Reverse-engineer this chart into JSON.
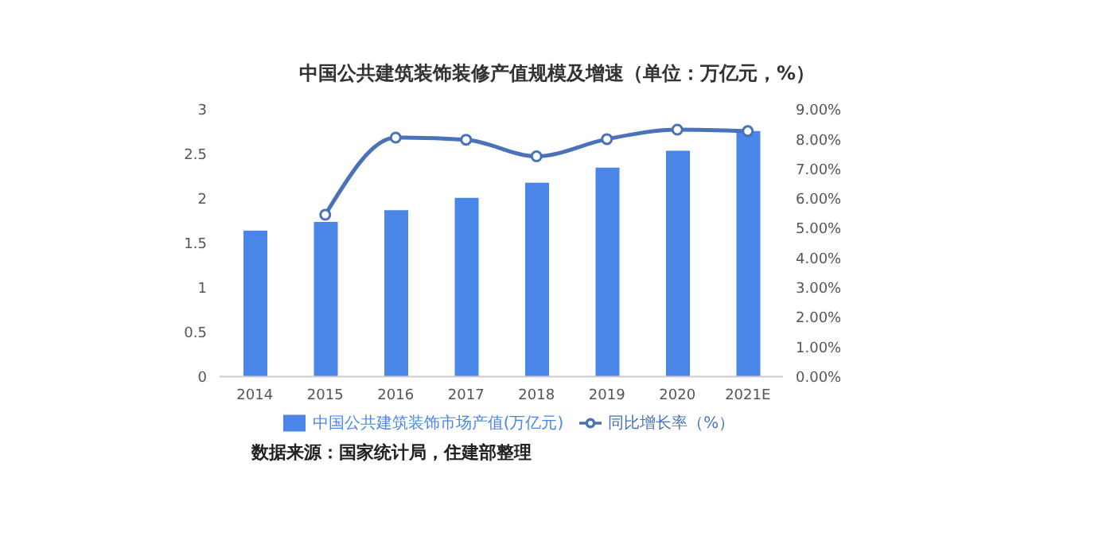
{
  "chart_data": {
    "type": "bar",
    "title": "中国公共建筑装饰装修产值规模及增速（单位：万亿元，%）",
    "categories": [
      "2014",
      "2015",
      "2016",
      "2017",
      "2018",
      "2019",
      "2020",
      "2021E"
    ],
    "series": [
      {
        "name": "中国公共建筑装饰市场产值(万亿元)",
        "color": "#4a86e8",
        "values": [
          1.64,
          1.74,
          1.87,
          2.01,
          2.18,
          2.35,
          2.54,
          2.76
        ]
      },
      {
        "type": "line",
        "name": "同比增长率（%）",
        "color": "#4a72b8",
        "axis": "y2",
        "values": [
          null,
          5.46,
          8.06,
          7.99,
          7.43,
          8.01,
          8.33,
          8.28
        ]
      }
    ],
    "ylim": [
      0,
      3
    ],
    "yticks": [
      0,
      0.5,
      1,
      1.5,
      2,
      2.5,
      3
    ],
    "y2lim": [
      0,
      9
    ],
    "y2ticks": [
      {
        "value": 0,
        "label": "0.00%"
      },
      {
        "value": 1,
        "label": "1.00%"
      },
      {
        "value": 2,
        "label": "2.00%"
      },
      {
        "value": 3,
        "label": "3.00%"
      },
      {
        "value": 4,
        "label": "4.00%"
      },
      {
        "value": 5,
        "label": "5.00%"
      },
      {
        "value": 6,
        "label": "6.00%"
      },
      {
        "value": 7,
        "label": "7.00%"
      },
      {
        "value": 8,
        "label": "8.00%"
      },
      {
        "value": 9,
        "label": "9.00%"
      }
    ],
    "marker": "circle",
    "grid": false,
    "legend": "bottom",
    "annotations": [
      "数据来源：国家统计局，住建部整理"
    ]
  }
}
